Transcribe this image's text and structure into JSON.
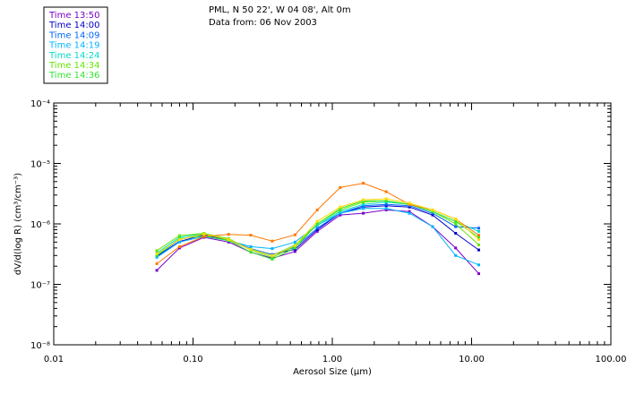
{
  "header": {
    "line1": "PML, N 50 22', W 04 08', Alt 0m",
    "line2": "Data from: 06 Nov 2003"
  },
  "chart_data": {
    "type": "line",
    "title": "PML, N 50 22', W 04 08', Alt 0m",
    "subtitle": "Data from: 06 Nov 2003",
    "xlabel": "Aerosol Size (µm)",
    "ylabel": "dV/d(log R) (cm³/cm⁻³)",
    "xscale": "log",
    "yscale": "log",
    "xlim": [
      0.01,
      100
    ],
    "ylim": [
      1e-08,
      0.0001
    ],
    "x_ticks": [
      "0.01",
      "0.10",
      "1.00",
      "10.00",
      "100.00"
    ],
    "y_ticks": [
      "10⁻⁸",
      "10⁻⁷",
      "10⁻⁶",
      "10⁻⁵",
      "10⁻⁴"
    ],
    "legend_position": "top-left",
    "x": [
      0.055,
      0.08,
      0.12,
      0.18,
      0.26,
      0.37,
      0.54,
      0.78,
      1.14,
      1.67,
      2.44,
      3.58,
      5.25,
      7.68,
      11.25
    ],
    "series": [
      {
        "name": "Time 13:50",
        "color": "#7b00c8",
        "values": [
          1.7e-07,
          4e-07,
          6e-07,
          5e-07,
          3.4e-07,
          2.7e-07,
          3.5e-07,
          7.5e-07,
          1.4e-06,
          1.5e-06,
          1.7e-06,
          1.6e-06,
          9e-07,
          4e-07,
          1.5e-07
        ]
      },
      {
        "name": "Time 14:00",
        "color": "#0000c8",
        "values": [
          2.9e-07,
          5.1e-07,
          6.6e-07,
          5.4e-07,
          3.8e-07,
          3.1e-07,
          3.8e-07,
          8e-07,
          1.5e-06,
          1.9e-06,
          2e-06,
          1.9e-06,
          1.4e-06,
          7e-07,
          3.7e-07
        ]
      },
      {
        "name": "Time 14:09",
        "color": "#0064ff",
        "values": [
          3e-07,
          5.5e-07,
          6.8e-07,
          5.5e-07,
          3.9e-07,
          3.1e-07,
          4.1e-07,
          8.5e-07,
          1.5e-06,
          2e-06,
          2.1e-06,
          2e-06,
          1.5e-06,
          9e-07,
          8.5e-07
        ]
      },
      {
        "name": "Time 14:19",
        "color": "#00b4ff",
        "values": [
          2.8e-07,
          5e-07,
          6.2e-07,
          5.3e-07,
          4.2e-07,
          3.9e-07,
          5e-07,
          9.5e-07,
          1.5e-06,
          1.8e-06,
          1.8e-06,
          1.5e-06,
          9e-07,
          3e-07,
          2.1e-07
        ]
      },
      {
        "name": "Time 14:24",
        "color": "#00dcc8",
        "values": [
          3.3e-07,
          6e-07,
          6.9e-07,
          5.5e-07,
          3.8e-07,
          3e-07,
          4.5e-07,
          9.5e-07,
          1.6e-06,
          2.1e-06,
          2.3e-06,
          2.1e-06,
          1.6e-06,
          1.1e-06,
          7.5e-07
        ]
      },
      {
        "name": "Time 14:34",
        "color": "#64e600",
        "values": [
          3.6e-07,
          6.4e-07,
          7e-07,
          5.7e-07,
          3.7e-07,
          2.8e-07,
          4.3e-07,
          1e-06,
          1.7e-06,
          2.3e-06,
          2.4e-06,
          2.1e-06,
          1.6e-06,
          1e-06,
          4.5e-07
        ]
      },
      {
        "name": "Time 14:36",
        "color": "#32e632",
        "values": [
          3e-07,
          5.7e-07,
          6.3e-07,
          5.3e-07,
          3.4e-07,
          2.6e-07,
          4e-07,
          1e-06,
          1.8e-06,
          2.4e-06,
          2.4e-06,
          2.1e-06,
          1.6e-06,
          1.1e-06,
          6e-07
        ]
      },
      {
        "name": "",
        "color": "#ff7800",
        "values": [
          2.2e-07,
          4.2e-07,
          6.2e-07,
          6.7e-07,
          6.5e-07,
          5.2e-07,
          6.6e-07,
          1.7e-06,
          4e-06,
          4.7e-06,
          3.4e-06,
          2.1e-06,
          1.7e-06,
          1.2e-06,
          6.5e-07
        ]
      },
      {
        "name": "",
        "color": "#ffdc00",
        "values": [
          3.2e-07,
          5.5e-07,
          6.8e-07,
          5.5e-07,
          3.8e-07,
          3e-07,
          4.4e-07,
          1.1e-06,
          1.9e-06,
          2.5e-06,
          2.6e-06,
          2.2e-06,
          1.7e-06,
          1.2e-06,
          5.5e-07
        ]
      }
    ]
  }
}
